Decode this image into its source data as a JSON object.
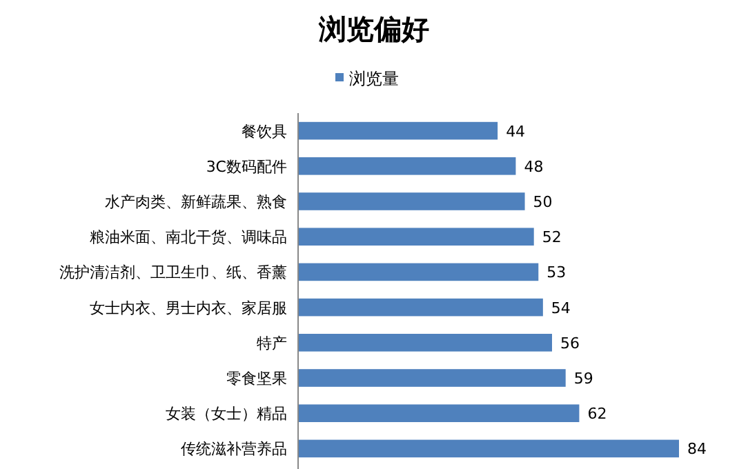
{
  "chart_data": {
    "type": "bar",
    "orientation": "horizontal",
    "title": "浏览偏好",
    "legend": "top",
    "data_labels": true,
    "categories": [
      "餐饮具",
      "3C数码配件",
      "水产肉类、新鲜蔬果、熟食",
      "粮油米面、南北干货、调味品",
      "洗护清洁剂、卫卫生巾、纸、香薰",
      "女士内衣、男士内衣、家居服",
      "特产",
      "零食坚果",
      "女装（女士）精品",
      "传统滋补营养品"
    ],
    "series": [
      {
        "name": "浏览量",
        "color": "#4f81bd",
        "values": [
          44,
          48,
          50,
          52,
          53,
          54,
          56,
          59,
          62,
          84
        ]
      }
    ]
  }
}
